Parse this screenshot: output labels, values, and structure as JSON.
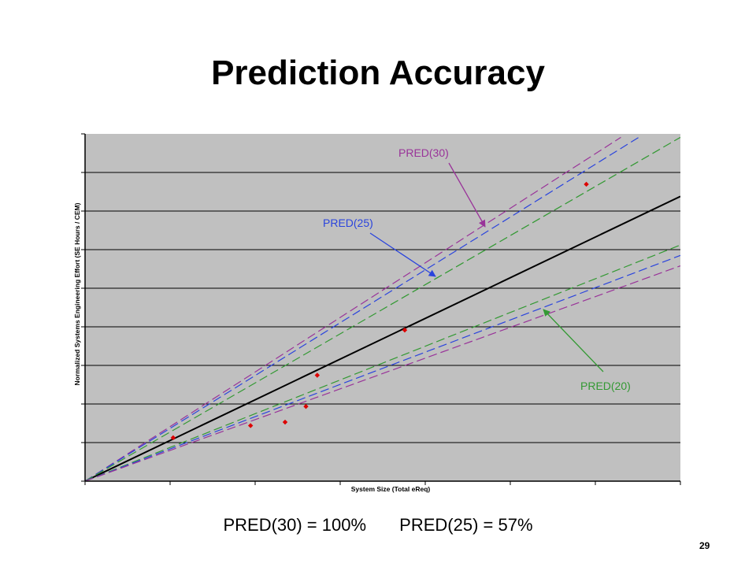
{
  "slide": {
    "title": "Prediction Accuracy",
    "summary_pred30": "PRED(30) = 100%",
    "summary_pred25": "PRED(25) = 57%",
    "page_number": "29"
  },
  "chart_data": {
    "type": "scatter",
    "xlabel": "System Size (Total eReq)",
    "ylabel": "Normalized Systems Engineering Effort (SE Hours / CEM)",
    "xlim": [
      0,
      1
    ],
    "ylim": [
      0,
      1
    ],
    "tick_labels_visible": false,
    "grid": "horizontal",
    "background_color": "#c0c0c0",
    "series": [
      {
        "name": "",
        "kind": "line",
        "role": "estimate",
        "color": "#000000",
        "dash": "solid",
        "x": [
          0,
          1
        ],
        "y": [
          0,
          0.82
        ]
      },
      {
        "name": "PRED(30)",
        "kind": "line",
        "role": "upper",
        "color": "#993399",
        "dash": "dashed",
        "x": [
          0,
          0.9
        ],
        "y": [
          0,
          0.99
        ]
      },
      {
        "name": "PRED(25)",
        "kind": "line",
        "role": "upper",
        "color": "#2a44dd",
        "dash": "dashed",
        "x": [
          0,
          0.93
        ],
        "y": [
          0,
          0.99
        ]
      },
      {
        "name": "PRED(20)",
        "kind": "line",
        "role": "upper",
        "color": "#339933",
        "dash": "dashed",
        "x": [
          0,
          1
        ],
        "y": [
          0,
          0.99
        ]
      },
      {
        "name": "PRED(20)",
        "kind": "line",
        "role": "lower",
        "color": "#339933",
        "dash": "dashed",
        "x": [
          0,
          1
        ],
        "y": [
          0,
          0.68
        ]
      },
      {
        "name": "PRED(25)",
        "kind": "line",
        "role": "lower",
        "color": "#2a44dd",
        "dash": "dashed",
        "x": [
          0,
          1
        ],
        "y": [
          0,
          0.65
        ]
      },
      {
        "name": "PRED(30)",
        "kind": "line",
        "role": "lower",
        "color": "#993399",
        "dash": "dashed",
        "x": [
          0,
          1
        ],
        "y": [
          0,
          0.62
        ]
      },
      {
        "name": "",
        "kind": "points",
        "role": "actuals",
        "color": "#dd0000",
        "x": [
          0.148,
          0.278,
          0.336,
          0.371,
          0.39,
          0.537,
          0.842
        ],
        "y": [
          0.125,
          0.16,
          0.17,
          0.215,
          0.305,
          0.435,
          0.855
        ]
      }
    ],
    "annotations": [
      {
        "text": "PRED(30)",
        "color": "#993399"
      },
      {
        "text": "PRED(25)",
        "color": "#2a44dd"
      },
      {
        "text": "PRED(20)",
        "color": "#339933"
      }
    ]
  }
}
